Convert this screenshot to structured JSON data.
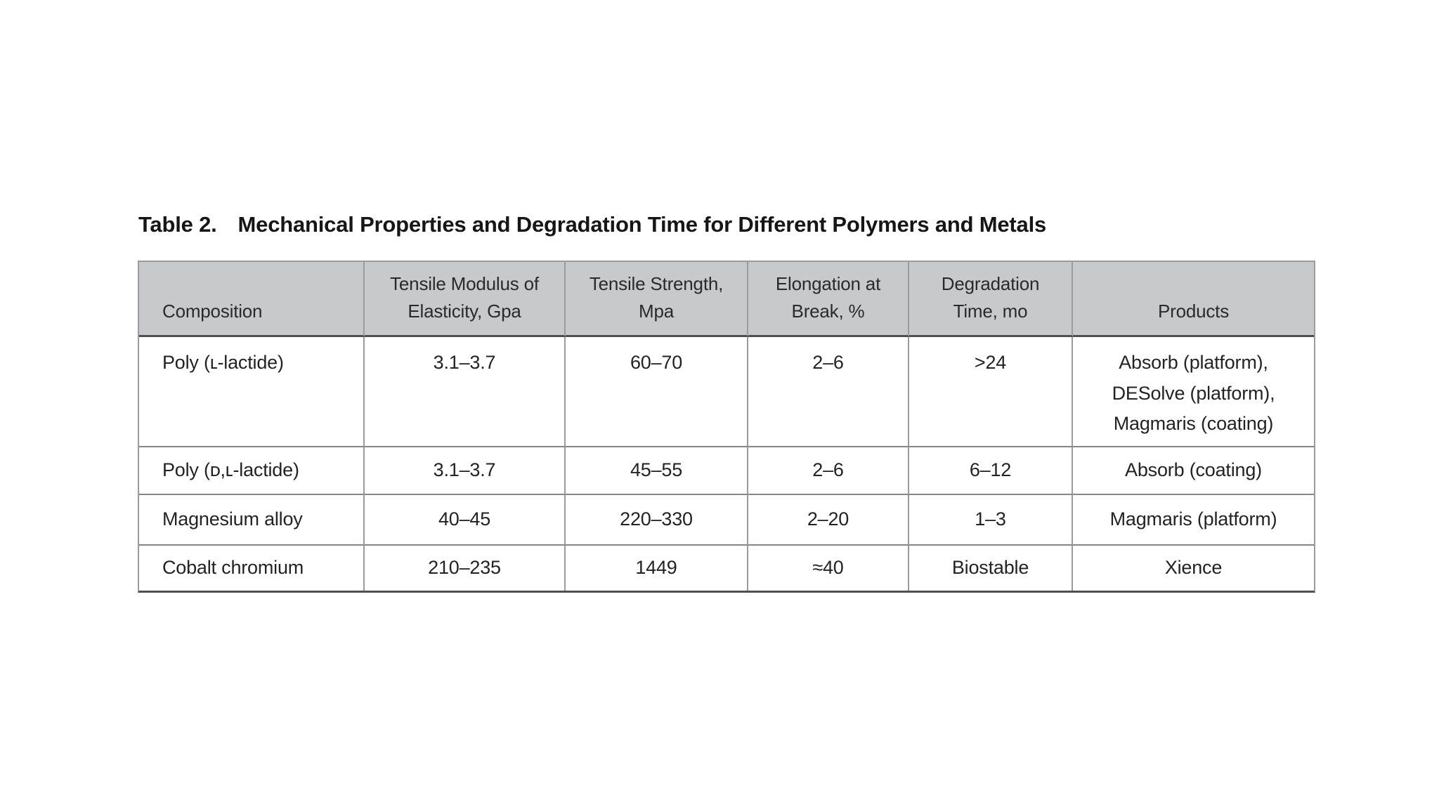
{
  "doc": {
    "caption": {
      "label": "Table 2.",
      "text": "Mechanical Properties and Degradation Time for Different Polymers and Metals"
    },
    "table": {
      "columns": [
        "Composition",
        "Tensile Modulus of\nElasticity, Gpa",
        "Tensile Strength,\nMpa",
        "Elongation at\nBreak, %",
        "Degradation\nTime, mo",
        "Products"
      ],
      "rows": [
        {
          "composition": "Poly (ʟ-lactide)",
          "modulus": "3.1–3.7",
          "strength": "60–70",
          "elongation": "2–6",
          "degradation": ">24",
          "products": "Absorb (platform),\nDESolve (platform),\nMagmaris (coating)"
        },
        {
          "composition": "Poly (ᴅ,ʟ-lactide)",
          "modulus": "3.1–3.7",
          "strength": "45–55",
          "elongation": "2–6",
          "degradation": "6–12",
          "products": "Absorb (coating)"
        },
        {
          "composition": "Magnesium alloy",
          "modulus": "40–45",
          "strength": "220–330",
          "elongation": "2–20",
          "degradation": "1–3",
          "products": "Magmaris (platform)"
        },
        {
          "composition": "Cobalt chromium",
          "modulus": "210–235",
          "strength": "1449",
          "elongation": "≈40",
          "degradation": "Biostable",
          "products": "Xience"
        }
      ],
      "colors": {
        "header_background": "#c8c9ca",
        "border_light": "#9b9b9b",
        "border_dark": "#4f4f4f",
        "text": "#232323"
      }
    }
  }
}
